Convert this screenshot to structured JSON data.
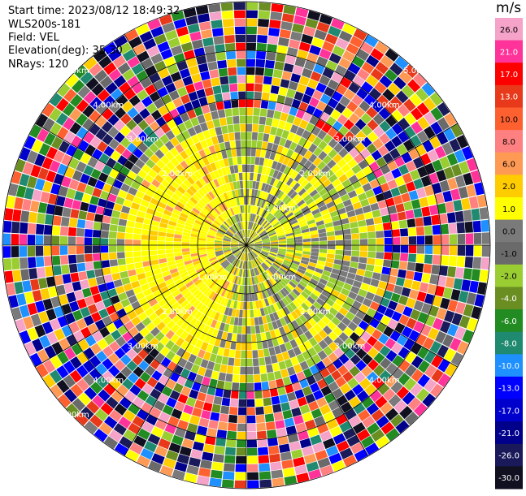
{
  "header": {
    "start_time": "Start time: 2023/08/12 18:49:32",
    "instrument": "WLS200s-181",
    "field": "Field: VEL",
    "elevation": "Elevation(deg): 35.30",
    "nrays": "NRays: 120"
  },
  "colorbar": {
    "unit": "m/s",
    "ticks": [
      "26.0",
      "21.0",
      "17.0",
      "13.0",
      "10.0",
      "8.0",
      "6.0",
      "2.0",
      "1.0",
      "0.0",
      "-1.0",
      "-2.0",
      "-4.0",
      "-6.0",
      "-8.0",
      "-10.0",
      "-13.0",
      "-17.0",
      "-21.0",
      "-26.0",
      "-30.0"
    ],
    "colors": [
      "#f5a3c8",
      "#ff3399",
      "#ff0000",
      "#e83a1a",
      "#ff6030",
      "#ff8080",
      "#ff9a55",
      "#ffcc00",
      "#ffff00",
      "#7a7a7a",
      "#6a6a6a",
      "#9acd32",
      "#6b8e23",
      "#228b22",
      "#1f8a70",
      "#1e90ff",
      "#0000ff",
      "#0000cd",
      "#00008b",
      "#1a1a5a",
      "#101020"
    ]
  },
  "chart_data": {
    "type": "heatmap",
    "title": "",
    "description_units": "radial velocity m/s, range rings in km",
    "range_rings_km": [
      "1.00km",
      "2.00km",
      "3.00km",
      "4.00km",
      "5.00km"
    ],
    "ring_labels": [
      {
        "text": "1.00km",
        "quadrant": "lower-left"
      },
      {
        "text": "1.00km",
        "quadrant": "lower-right"
      },
      {
        "text": "1.00km",
        "quadrant": "upper-right"
      },
      {
        "text": "2.00km",
        "quadrant": "upper-left"
      },
      {
        "text": "2.00km",
        "quadrant": "upper-right"
      },
      {
        "text": "2.00km",
        "quadrant": "lower-left"
      },
      {
        "text": "2.00km",
        "quadrant": "lower-right"
      },
      {
        "text": "3.00km",
        "quadrant": "upper-left"
      },
      {
        "text": "3.00km",
        "quadrant": "upper-right"
      },
      {
        "text": "3.00km",
        "quadrant": "lower-left"
      },
      {
        "text": "3.00km",
        "quadrant": "lower-right"
      },
      {
        "text": "4.00km",
        "quadrant": "upper-left"
      },
      {
        "text": "4.00km",
        "quadrant": "upper-right"
      },
      {
        "text": "4.00km",
        "quadrant": "lower-left"
      },
      {
        "text": "4.00km",
        "quadrant": "lower-right"
      },
      {
        "text": "5.00km",
        "quadrant": "upper-left"
      },
      {
        "text": "5.00km",
        "quadrant": "upper-right"
      },
      {
        "text": "5.00km",
        "quadrant": "lower-left"
      }
    ],
    "nrays": 120
  }
}
